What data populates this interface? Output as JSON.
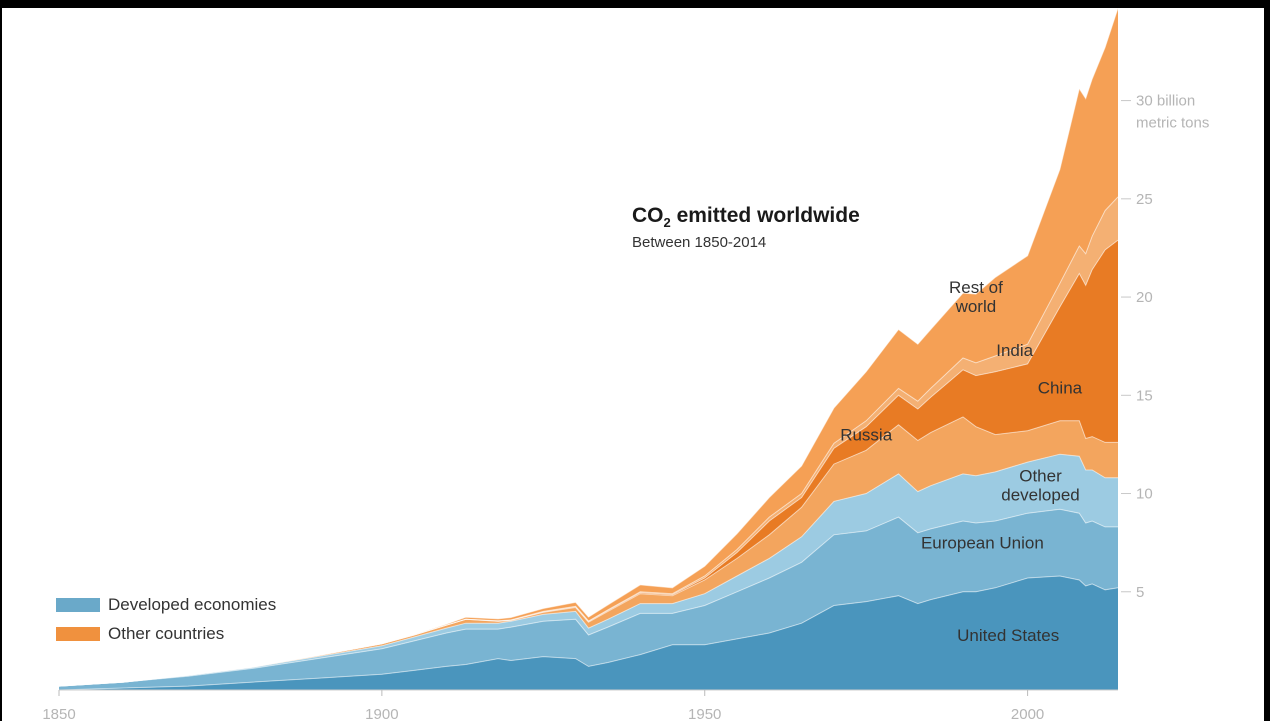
{
  "chart_data": {
    "type": "area",
    "title_main": "CO",
    "title_sub": "2",
    "title_rest": " emitted worldwide",
    "subtitle": "Between 1850-2014",
    "xlabel": "",
    "ylabel": "",
    "x_ticks": [
      1850,
      1900,
      1950,
      2000
    ],
    "y_ticks": [
      {
        "value": 30,
        "label": "30 billion",
        "label2": "metric tons"
      },
      {
        "value": 25,
        "label": "25"
      },
      {
        "value": 20,
        "label": "20"
      },
      {
        "value": 15,
        "label": "15"
      },
      {
        "value": 10,
        "label": "10"
      },
      {
        "value": 5,
        "label": "5"
      }
    ],
    "xlim": [
      1850,
      2014
    ],
    "ylim": [
      0,
      34
    ],
    "grid": false,
    "legend_position": "bottom-left",
    "legend": [
      {
        "label": "Developed economies",
        "color": "#6aa9c9"
      },
      {
        "label": "Other countries",
        "color": "#f0913e"
      }
    ],
    "x": [
      1850,
      1860,
      1870,
      1880,
      1890,
      1900,
      1905,
      1910,
      1913,
      1918,
      1920,
      1925,
      1930,
      1932,
      1935,
      1940,
      1945,
      1950,
      1955,
      1960,
      1965,
      1970,
      1975,
      1980,
      1983,
      1985,
      1990,
      1992,
      1995,
      2000,
      2005,
      2008,
      2009,
      2010,
      2012,
      2014
    ],
    "series": [
      {
        "name": "United States",
        "color": "#4a95bd",
        "values": [
          0.0,
          0.1,
          0.2,
          0.4,
          0.6,
          0.8,
          1.0,
          1.2,
          1.3,
          1.6,
          1.5,
          1.7,
          1.6,
          1.2,
          1.4,
          1.8,
          2.3,
          2.3,
          2.6,
          2.9,
          3.4,
          4.3,
          4.5,
          4.8,
          4.4,
          4.6,
          5.0,
          5.0,
          5.2,
          5.7,
          5.8,
          5.6,
          5.3,
          5.4,
          5.1,
          5.2
        ]
      },
      {
        "name": "European Union",
        "color": "#79b4d2",
        "values": [
          0.2,
          0.3,
          0.5,
          0.7,
          1.0,
          1.3,
          1.5,
          1.7,
          1.8,
          1.5,
          1.7,
          1.8,
          2.0,
          1.6,
          1.8,
          2.1,
          1.6,
          2.0,
          2.4,
          2.8,
          3.1,
          3.6,
          3.6,
          4.0,
          3.6,
          3.6,
          3.6,
          3.5,
          3.4,
          3.3,
          3.4,
          3.4,
          3.2,
          3.2,
          3.2,
          3.1
        ]
      },
      {
        "name": "Other developed",
        "color": "#9ccbe2",
        "values": [
          0.0,
          0.0,
          0.05,
          0.05,
          0.1,
          0.15,
          0.2,
          0.25,
          0.3,
          0.3,
          0.3,
          0.35,
          0.4,
          0.35,
          0.4,
          0.5,
          0.5,
          0.6,
          0.8,
          1.0,
          1.3,
          1.7,
          1.9,
          2.2,
          2.1,
          2.2,
          2.4,
          2.4,
          2.5,
          2.6,
          2.8,
          2.9,
          2.7,
          2.6,
          2.5,
          2.5
        ]
      },
      {
        "name": "Russia",
        "color": "#f3a55e",
        "values": [
          0.0,
          0.0,
          0.0,
          0.02,
          0.05,
          0.1,
          0.1,
          0.15,
          0.2,
          0.1,
          0.05,
          0.1,
          0.2,
          0.3,
          0.4,
          0.5,
          0.4,
          0.7,
          0.9,
          1.2,
          1.5,
          1.9,
          2.2,
          2.5,
          2.6,
          2.7,
          2.9,
          2.5,
          1.9,
          1.6,
          1.7,
          1.8,
          1.6,
          1.7,
          1.8,
          1.8
        ]
      },
      {
        "name": "China",
        "color": "#e87b24",
        "values": [
          0.0,
          0.0,
          0.0,
          0.0,
          0.0,
          0.0,
          0.0,
          0.0,
          0.0,
          0.0,
          0.0,
          0.02,
          0.03,
          0.03,
          0.04,
          0.05,
          0.05,
          0.1,
          0.3,
          0.7,
          0.5,
          0.8,
          1.2,
          1.5,
          1.6,
          1.8,
          2.4,
          2.6,
          3.2,
          3.4,
          5.8,
          7.5,
          7.8,
          8.5,
          9.8,
          10.3
        ]
      },
      {
        "name": "India",
        "color": "#f4b073",
        "values": [
          0.0,
          0.0,
          0.0,
          0.0,
          0.0,
          0.0,
          0.0,
          0.0,
          0.0,
          0.02,
          0.02,
          0.03,
          0.03,
          0.03,
          0.04,
          0.05,
          0.05,
          0.1,
          0.15,
          0.2,
          0.2,
          0.25,
          0.3,
          0.35,
          0.4,
          0.45,
          0.6,
          0.65,
          0.8,
          1.0,
          1.2,
          1.4,
          1.6,
          1.7,
          2.0,
          2.2
        ]
      },
      {
        "name": "Rest of world",
        "color": "#f5a055",
        "values": [
          0.0,
          0.0,
          0.0,
          0.0,
          0.0,
          0.0,
          0.02,
          0.05,
          0.1,
          0.1,
          0.12,
          0.15,
          0.2,
          0.2,
          0.25,
          0.35,
          0.3,
          0.5,
          0.8,
          1.0,
          1.4,
          1.8,
          2.5,
          3.0,
          2.9,
          3.0,
          3.3,
          3.5,
          4.0,
          4.5,
          5.8,
          8.0,
          7.9,
          8.0,
          8.3,
          9.6
        ]
      }
    ],
    "series_labels": [
      {
        "series": "United States",
        "text": "United States",
        "x": 1997,
        "y": 2.5
      },
      {
        "series": "European Union",
        "text": "European Union",
        "x": 1993,
        "y": 7.2
      },
      {
        "series": "Other developed",
        "text": "Other",
        "text2": "developed",
        "x": 2002,
        "y": 10.6
      },
      {
        "series": "Russia",
        "text": "Russia",
        "x": 1975,
        "y": 12.7
      },
      {
        "series": "China",
        "text": "China",
        "x": 2005,
        "y": 15.1
      },
      {
        "series": "India",
        "text": "India",
        "x": 1998,
        "y": 17.0
      },
      {
        "series": "Rest of world",
        "text": "Rest of",
        "text2": "world",
        "x": 1992,
        "y": 20.2
      }
    ]
  }
}
